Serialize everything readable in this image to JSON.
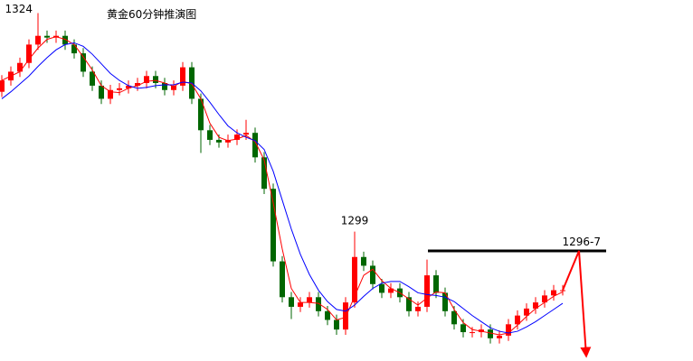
{
  "chart_data": {
    "type": "candlestick",
    "title": "黄金60分钟推演图",
    "open": [
      1315.0,
      1316.3,
      1317.3,
      1318.3,
      1320.4,
      1321.4,
      1321.2,
      1321.4,
      1320.4,
      1319.4,
      1317.3,
      1315.7,
      1314.2,
      1315.2,
      1315.4,
      1315.7,
      1316.0,
      1316.8,
      1316.0,
      1315.2,
      1315.7,
      1317.8,
      1314.2,
      1310.6,
      1309.5,
      1309.2,
      1309.5,
      1310.1,
      1310.3,
      1307.5,
      1303.9,
      1295.6,
      1291.5,
      1290.4,
      1290.9,
      1291.5,
      1289.9,
      1288.9,
      1287.8,
      1290.9,
      1296.1,
      1295.1,
      1293.0,
      1292.0,
      1292.5,
      1291.5,
      1289.9,
      1290.4,
      1294.0,
      1292.0,
      1289.9,
      1288.4,
      1287.5,
      1287.5,
      1287.8,
      1286.8,
      1287.1,
      1288.4,
      1289.4,
      1290.2,
      1290.9,
      1291.7,
      1292.3
    ],
    "high": [
      1316.9,
      1317.9,
      1318.9,
      1321.0,
      1324.0,
      1322.0,
      1322.0,
      1322.0,
      1321.0,
      1320.0,
      1317.9,
      1316.3,
      1315.8,
      1316.0,
      1316.3,
      1316.6,
      1317.4,
      1317.4,
      1316.6,
      1316.3,
      1318.4,
      1318.4,
      1314.8,
      1311.2,
      1310.1,
      1310.1,
      1310.7,
      1311.8,
      1310.9,
      1308.1,
      1304.5,
      1296.2,
      1292.1,
      1291.5,
      1292.1,
      1292.1,
      1290.5,
      1289.5,
      1291.5,
      1299.0,
      1296.7,
      1295.7,
      1293.6,
      1293.1,
      1293.1,
      1292.1,
      1291.0,
      1295.8,
      1294.6,
      1292.6,
      1290.5,
      1289.0,
      1288.1,
      1288.4,
      1288.4,
      1287.7,
      1289.0,
      1290.0,
      1290.8,
      1291.5,
      1292.3,
      1292.9,
      1292.9
    ],
    "low": [
      1314.4,
      1315.7,
      1316.7,
      1317.7,
      1319.8,
      1320.6,
      1320.6,
      1319.8,
      1318.8,
      1316.7,
      1315.1,
      1313.6,
      1313.6,
      1314.6,
      1314.8,
      1315.1,
      1315.4,
      1315.4,
      1314.6,
      1314.6,
      1315.1,
      1313.6,
      1308.0,
      1308.9,
      1308.6,
      1308.6,
      1308.9,
      1309.5,
      1306.9,
      1303.3,
      1295.0,
      1290.9,
      1289.0,
      1289.8,
      1290.3,
      1289.3,
      1288.3,
      1287.2,
      1287.2,
      1290.3,
      1294.5,
      1292.4,
      1291.4,
      1291.4,
      1290.9,
      1289.3,
      1289.3,
      1289.8,
      1291.4,
      1289.3,
      1287.8,
      1286.9,
      1286.9,
      1286.9,
      1286.2,
      1286.2,
      1286.5,
      1287.8,
      1288.8,
      1289.6,
      1290.3,
      1291.1,
      1291.7
    ],
    "close": [
      1316.3,
      1317.3,
      1318.3,
      1320.4,
      1321.4,
      1321.2,
      1321.4,
      1320.4,
      1319.4,
      1317.3,
      1315.7,
      1314.2,
      1315.2,
      1315.4,
      1315.7,
      1316.0,
      1316.8,
      1316.0,
      1315.2,
      1315.7,
      1317.8,
      1314.2,
      1310.6,
      1309.5,
      1309.2,
      1309.5,
      1310.1,
      1310.3,
      1307.5,
      1303.9,
      1295.6,
      1291.5,
      1290.4,
      1290.9,
      1291.5,
      1289.9,
      1288.9,
      1287.8,
      1290.9,
      1296.1,
      1295.1,
      1293.0,
      1292.0,
      1292.5,
      1291.5,
      1289.9,
      1290.4,
      1294.0,
      1292.0,
      1289.9,
      1288.4,
      1287.5,
      1287.5,
      1287.8,
      1286.8,
      1287.1,
      1288.4,
      1289.4,
      1290.2,
      1290.9,
      1291.7,
      1292.3,
      1292.3
    ],
    "up_color": "#ff0000",
    "down_color": "#006600",
    "moving_averages": [
      {
        "color": "#ff0000",
        "values": [
          1316.3,
          1316.8,
          1317.3,
          1318.7,
          1320.0,
          1321.0,
          1321.3,
          1321.0,
          1320.4,
          1319.0,
          1317.5,
          1315.7,
          1315.0,
          1314.9,
          1315.4,
          1315.7,
          1316.2,
          1316.3,
          1316.0,
          1315.6,
          1316.2,
          1315.9,
          1314.2,
          1311.4,
          1309.8,
          1309.4,
          1309.6,
          1310.0,
          1309.3,
          1307.2,
          1302.3,
          1297.0,
          1292.5,
          1290.9,
          1290.9,
          1290.8,
          1290.1,
          1288.9,
          1289.2,
          1291.6,
          1294.0,
          1294.7,
          1293.4,
          1292.5,
          1292.0,
          1291.3,
          1290.6,
          1291.4,
          1292.1,
          1292.0,
          1290.1,
          1288.6,
          1287.8,
          1287.6,
          1287.4,
          1287.2,
          1287.4,
          1288.3,
          1289.3,
          1290.2,
          1290.9,
          1291.6,
          1292.1
        ]
      },
      {
        "color": "#0000ff",
        "values": [
          1314.2,
          1315.0,
          1315.9,
          1316.8,
          1317.9,
          1318.9,
          1319.8,
          1320.4,
          1320.6,
          1320.2,
          1319.3,
          1318.2,
          1317.1,
          1316.3,
          1315.7,
          1315.4,
          1315.5,
          1315.7,
          1315.8,
          1315.8,
          1316.1,
          1316.0,
          1315.1,
          1313.8,
          1312.4,
          1311.1,
          1310.3,
          1309.8,
          1309.4,
          1308.4,
          1305.9,
          1302.6,
          1299.3,
          1296.4,
          1294.1,
          1292.3,
          1291.0,
          1290.1,
          1289.9,
          1290.6,
          1291.6,
          1292.5,
          1293.1,
          1293.3,
          1293.3,
          1292.7,
          1292.0,
          1291.8,
          1291.7,
          1291.5,
          1291.0,
          1290.2,
          1289.4,
          1288.7,
          1288.0,
          1287.6,
          1287.4,
          1287.6,
          1288.1,
          1288.7,
          1289.4,
          1290.1,
          1290.8
        ]
      }
    ],
    "annotations": [
      {
        "label": "1324",
        "value": 1324
      },
      {
        "label": "1299",
        "value": 1299
      }
    ],
    "resistance": {
      "label": "1296-7",
      "value": 1296.8,
      "x": [
        47.1,
        66.8
      ],
      "color": "#000000"
    },
    "projection": {
      "color": "#ff0000",
      "x": [
        62,
        63.8,
        64.6
      ],
      "values": [
        1292.3,
        1296.8,
        1284.8
      ]
    },
    "xlim": [
      -0.2,
      76.4
    ],
    "ylim": [
      1284.2,
      1325.5
    ]
  }
}
